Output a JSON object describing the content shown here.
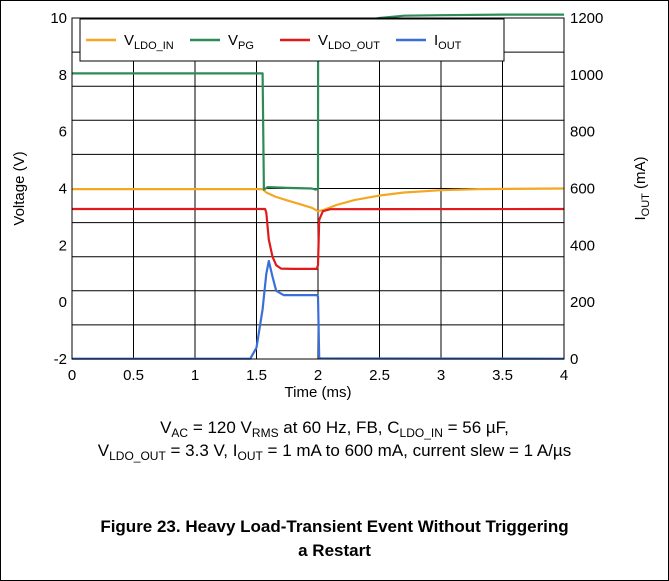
{
  "chart_data": {
    "type": "line",
    "xlabel": "Time (ms)",
    "ylabel": "Voltage (V)",
    "y2label_main": "I",
    "y2label_sub": "OUT",
    "y2label_unit": " (mA)",
    "xlim": [
      0,
      4
    ],
    "ylim": [
      -2,
      10
    ],
    "y2lim": [
      0,
      1200
    ],
    "grid": true,
    "legend_position": "top",
    "x_ticks": [
      "0",
      "0.5",
      "1",
      "1.5",
      "2",
      "2.5",
      "3",
      "3.5",
      "4"
    ],
    "y_ticks": [
      "-2",
      "0",
      "2",
      "4",
      "6",
      "8",
      "10"
    ],
    "y2_ticks": [
      "0",
      "200",
      "400",
      "600",
      "800",
      "1000",
      "1200"
    ],
    "series": [
      {
        "name_main": "V",
        "name_sub": "LDO_IN",
        "color": "#f5a623",
        "axis": "left",
        "points": [
          [
            0,
            3.98
          ],
          [
            1.55,
            3.98
          ],
          [
            1.58,
            3.86
          ],
          [
            1.65,
            3.72
          ],
          [
            1.75,
            3.58
          ],
          [
            1.85,
            3.45
          ],
          [
            1.95,
            3.32
          ],
          [
            2.0,
            3.2
          ],
          [
            2.05,
            3.25
          ],
          [
            2.15,
            3.42
          ],
          [
            2.3,
            3.6
          ],
          [
            2.5,
            3.75
          ],
          [
            2.7,
            3.86
          ],
          [
            3.0,
            3.94
          ],
          [
            3.3,
            3.98
          ],
          [
            4.0,
            4.0
          ]
        ]
      },
      {
        "name_main": "V",
        "name_sub": "PG",
        "color": "#2e8b57",
        "axis": "left",
        "points": [
          [
            0,
            8.05
          ],
          [
            1.55,
            8.05
          ],
          [
            1.56,
            3.96
          ],
          [
            1.59,
            4.05
          ],
          [
            1.75,
            4.02
          ],
          [
            1.95,
            4.0
          ],
          [
            1.98,
            3.96
          ],
          [
            2.0,
            3.98
          ],
          [
            2.001,
            9.05
          ],
          [
            2.05,
            9.3
          ],
          [
            2.1,
            9.45
          ],
          [
            2.2,
            9.7
          ],
          [
            2.35,
            9.88
          ],
          [
            2.5,
            10.0
          ],
          [
            2.7,
            10.08
          ],
          [
            3.0,
            10.1
          ],
          [
            3.5,
            10.12
          ],
          [
            4.0,
            10.12
          ]
        ]
      },
      {
        "name_main": "V",
        "name_sub": "LDO_OUT",
        "color": "#e0191b",
        "axis": "left",
        "points": [
          [
            0,
            3.28
          ],
          [
            1.57,
            3.28
          ],
          [
            1.58,
            3.15
          ],
          [
            1.6,
            2.2
          ],
          [
            1.63,
            1.6
          ],
          [
            1.66,
            1.3
          ],
          [
            1.7,
            1.18
          ],
          [
            1.8,
            1.17
          ],
          [
            1.99,
            1.17
          ],
          [
            2.0,
            1.3
          ],
          [
            2.01,
            2.9
          ],
          [
            2.04,
            3.2
          ],
          [
            2.1,
            3.27
          ],
          [
            4.0,
            3.28
          ]
        ]
      },
      {
        "name_main": "I",
        "name_sub": "OUT",
        "color": "#3a6fd8",
        "axis": "right",
        "points": [
          [
            0,
            1
          ],
          [
            1.45,
            1
          ],
          [
            1.5,
            40
          ],
          [
            1.55,
            175
          ],
          [
            1.58,
            300
          ],
          [
            1.6,
            345
          ],
          [
            1.63,
            290
          ],
          [
            1.66,
            240
          ],
          [
            1.72,
            225
          ],
          [
            1.85,
            225
          ],
          [
            1.99,
            225
          ],
          [
            2.0,
            220
          ],
          [
            2.01,
            5
          ],
          [
            2.02,
            2
          ],
          [
            4.0,
            1
          ]
        ]
      }
    ]
  },
  "caption": {
    "l1_a": "V",
    "l1_a_sub": "AC",
    "l1_b": " = 120 V",
    "l1_b_sub": "RMS",
    "l1_c": " at 60 Hz, FB, C",
    "l1_c_sub": "LDO_IN",
    "l1_d": " = 56 µF,",
    "l2_a": "V",
    "l2_a_sub": "LDO_OUT",
    "l2_b": " = 3.3 V, I",
    "l2_b_sub": "OUT",
    "l2_c": " = 1 mA to 600 mA, current slew = 1 A/µs"
  },
  "figure": {
    "line1": "Figure 23. Heavy Load-Transient Event Without Triggering",
    "line2": "a Restart"
  }
}
